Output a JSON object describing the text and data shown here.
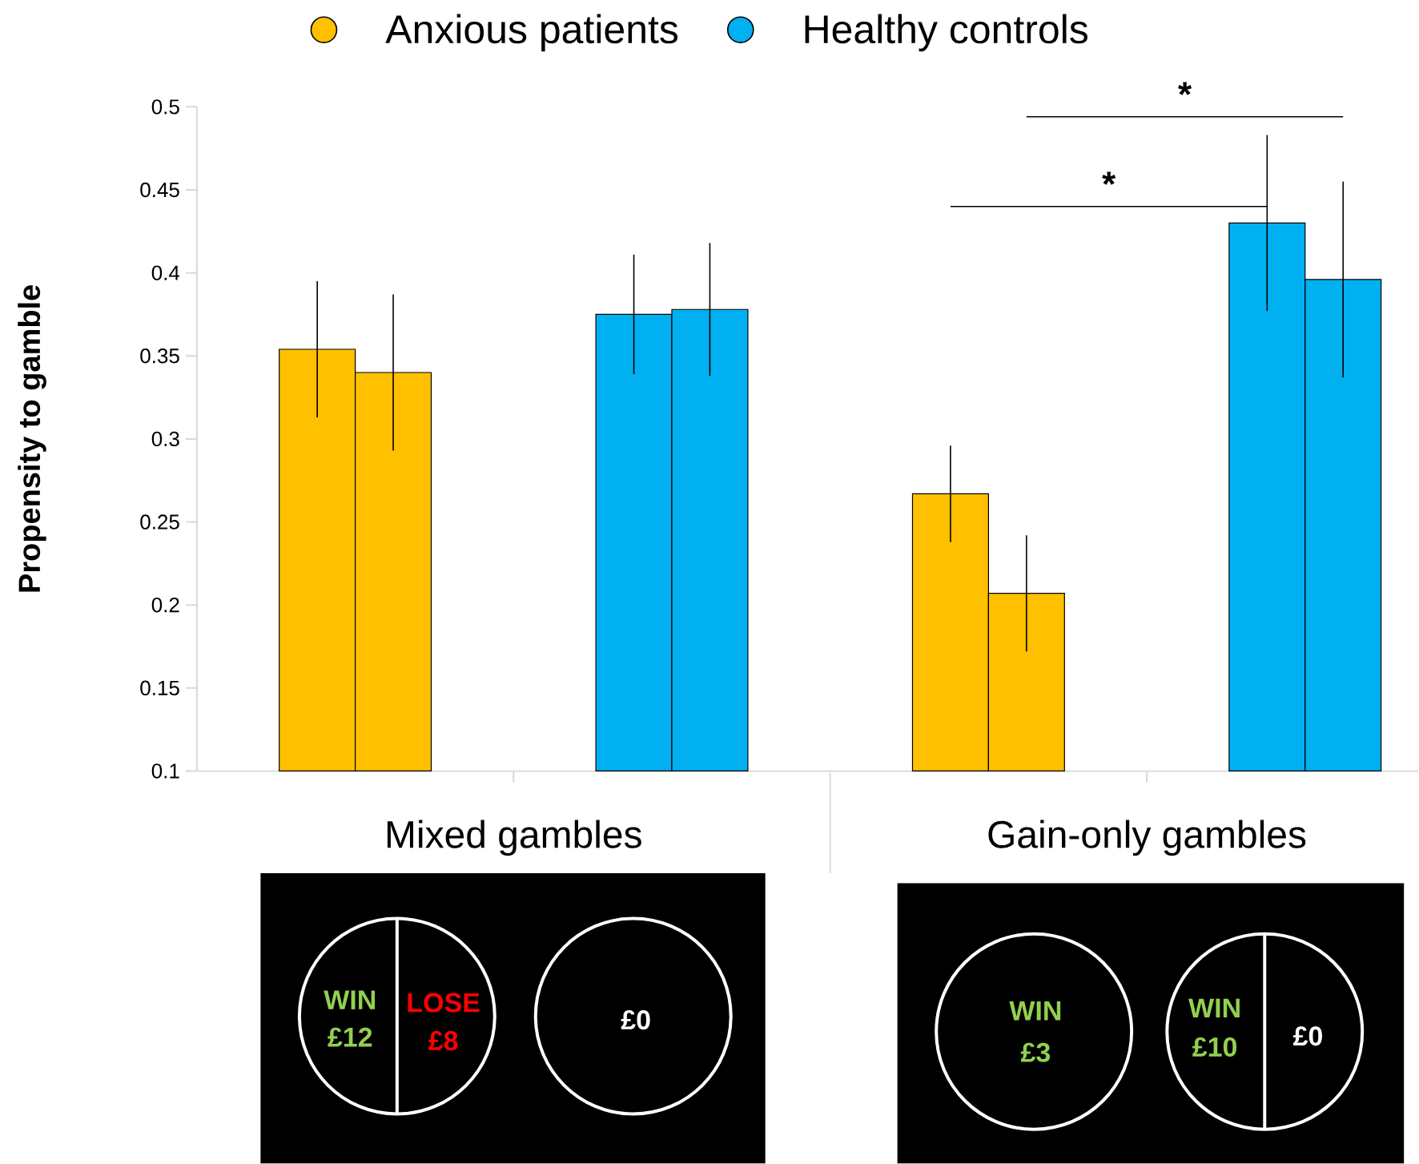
{
  "chart_data": {
    "type": "bar",
    "ylabel": "Propensity to gamble",
    "categories": [
      "Mixed gambles",
      "Gain-only gambles"
    ],
    "series": [
      {
        "name": "Anxious patients",
        "color": "#ffc000",
        "values": [
          0.354,
          0.267
        ],
        "errors": [
          0.041,
          0.029
        ]
      },
      {
        "color": "#ffc000",
        "values": [
          0.34,
          0.207
        ],
        "errors": [
          0.047,
          0.035
        ]
      },
      {
        "name": "Healthy controls",
        "color": "#00b0f0",
        "values": [
          0.375,
          0.43
        ],
        "errors": [
          0.036,
          0.053
        ]
      },
      {
        "color": "#00b0f0",
        "values": [
          0.378,
          0.396
        ],
        "errors": [
          0.04,
          0.059
        ]
      }
    ],
    "ylim": [
      0.1,
      0.5
    ],
    "yticks": [
      0.1,
      0.15,
      0.2,
      0.25,
      0.3,
      0.35,
      0.4,
      0.45,
      0.5
    ],
    "legend": "top",
    "grid": false,
    "annotations": [
      "WIN",
      "£12",
      "LOSE",
      "£8",
      "£0",
      "WIN",
      "£3",
      "WIN",
      "£10",
      "£0",
      "*",
      "*"
    ]
  }
}
